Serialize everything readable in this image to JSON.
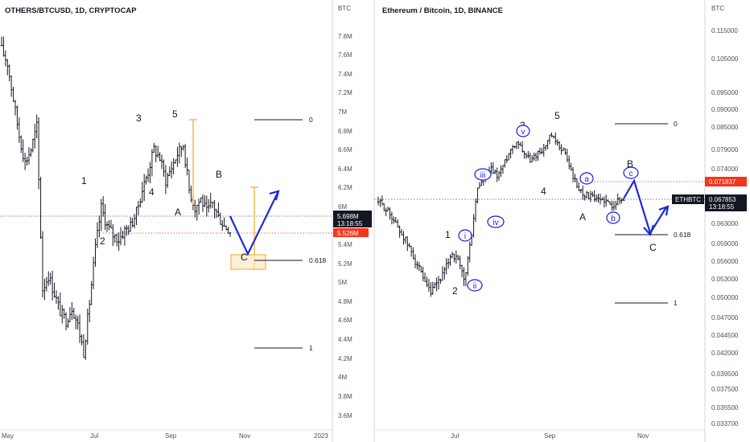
{
  "left": {
    "title": "OTHERS/BTCUSD, 1D, CRYPTOCAP",
    "axis_unit": "BTC",
    "y_ticks": [
      "7.8M",
      "7.6M",
      "7.4M",
      "7.2M",
      "7M",
      "6.8M",
      "6.6M",
      "6.4M",
      "6.2M",
      "6M",
      "5.4M",
      "5.2M",
      "5M",
      "4.8M",
      "4.6M",
      "4.4M",
      "4.2M",
      "4M",
      "3.8M",
      "3.6M"
    ],
    "x_ticks": [
      "May",
      "Jul",
      "Sep",
      "Nov",
      "2023"
    ],
    "price_tag": {
      "value": "5.698M",
      "countdown": "13:18:55"
    },
    "level_tag": {
      "value": "5.526M"
    },
    "waves": {
      "w1": "1",
      "w2": "2",
      "w3": "3",
      "w4": "4",
      "w5": "5",
      "wA": "A",
      "wB": "B",
      "wC": "C"
    },
    "fib": {
      "f0": "0",
      "f618": "0.618",
      "f1": "1"
    },
    "colors": {
      "candle": "#131722",
      "projection": "#1c2bd6",
      "fib_box": "#f5a623",
      "level": "#f2361d"
    }
  },
  "right": {
    "title": "Ethereum / Bitcoin, 1D, BINANCE",
    "axis_unit": "BTC",
    "y_ticks": [
      "0.115000",
      "0.105000",
      "0.095000",
      "0.090000",
      "0.085000",
      "0.079000",
      "0.074000",
      "0.063000",
      "0.059000",
      "0.056000",
      "0.053000",
      "0.050000",
      "0.047000",
      "0.044500",
      "0.042000",
      "0.039500",
      "0.037500",
      "0.035500",
      "0.033700"
    ],
    "x_ticks": [
      "Jul",
      "Sep",
      "Nov"
    ],
    "symbol_tag": "ETHBTC",
    "price_tag": {
      "value": "0.067853",
      "countdown": "13:18:55"
    },
    "level_tag": {
      "value": "0.071837"
    },
    "waves": {
      "w1": "1",
      "w2": "2",
      "w3": "3",
      "w4": "4",
      "w5": "5",
      "wA": "A",
      "wB": "B",
      "wC": "C"
    },
    "sub_waves": {
      "i": "i",
      "ii": "ii",
      "iii": "iii",
      "iv": "iv",
      "v": "v",
      "a": "a",
      "b": "b",
      "c": "c"
    },
    "fib": {
      "f0": "0",
      "f618": "0.618",
      "f1": "1"
    },
    "colors": {
      "candle": "#131722",
      "projection": "#1c2bd6",
      "level": "#f2361d"
    }
  },
  "chart_data": [
    {
      "type": "candlestick",
      "title": "OTHERS/BTCUSD, 1D, CRYPTOCAP",
      "y_unit": "BTC",
      "ylim": [
        3.55,
        7.95
      ],
      "x_ticks": [
        "May",
        "Jul",
        "Sep",
        "Nov",
        "2023"
      ],
      "close_path": [
        7.65,
        7.5,
        7.1,
        6.7,
        6.4,
        6.55,
        6.8,
        5.0,
        5.15,
        4.95,
        4.75,
        4.65,
        4.8,
        4.6,
        4.3,
        4.85,
        5.45,
        5.9,
        5.7,
        5.6,
        5.55,
        5.65,
        5.7,
        5.85,
        6.1,
        6.3,
        6.55,
        6.45,
        6.2,
        6.35,
        6.5,
        6.6,
        6.1,
        5.9,
        6.0,
        5.85,
        5.95,
        5.8,
        5.7,
        5.65
      ],
      "current_price": 5.698,
      "level": 5.526,
      "wave_labels": [
        "1",
        "2",
        "3",
        "4",
        "5",
        "A",
        "B",
        "C"
      ],
      "fib_levels": [
        "0",
        "0.618",
        "1"
      ]
    },
    {
      "type": "candlestick",
      "title": "Ethereum / Bitcoin, 1D, BINANCE",
      "y_unit": "BTC",
      "ylim": [
        0.0337,
        0.12
      ],
      "x_ticks": [
        "Jul",
        "Sep",
        "Nov"
      ],
      "close_path": [
        0.0675,
        0.066,
        0.0645,
        0.062,
        0.06,
        0.0575,
        0.055,
        0.052,
        0.0505,
        0.0525,
        0.054,
        0.0575,
        0.056,
        0.0525,
        0.06,
        0.0705,
        0.0725,
        0.0745,
        0.073,
        0.076,
        0.0795,
        0.0815,
        0.0785,
        0.0765,
        0.0785,
        0.0795,
        0.083,
        0.0805,
        0.079,
        0.0745,
        0.0705,
        0.069,
        0.0685,
        0.0675,
        0.068,
        0.0665,
        0.0675,
        0.0678
      ],
      "current_price": 0.067853,
      "level": 0.071837,
      "wave_labels": [
        "1",
        "2",
        "3",
        "4",
        "5",
        "A",
        "B",
        "C"
      ],
      "sub_wave_labels": [
        "i",
        "ii",
        "iii",
        "iv",
        "v",
        "a",
        "b",
        "c"
      ],
      "fib_levels": [
        "0",
        "0.618",
        "1"
      ]
    }
  ]
}
